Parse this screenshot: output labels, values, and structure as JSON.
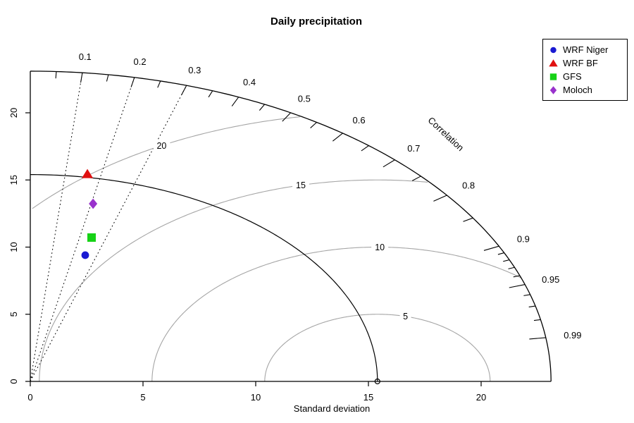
{
  "chart_data": {
    "type": "taylor-diagram",
    "title": "Daily precipitation",
    "xlabel": "Standard deviation",
    "arc_axis_label": "Correlation",
    "axis_range": [
      0,
      23.1
    ],
    "sd_ticks": [
      0,
      5,
      10,
      15,
      20
    ],
    "correlation_labeled_ticks": [
      "0.1",
      "0.2",
      "0.3",
      "0.4",
      "0.5",
      "0.6",
      "0.7",
      "0.8",
      "0.9",
      "0.95",
      "0.99"
    ],
    "correlation_medium_ticks": [
      0.05,
      0.15,
      0.25,
      0.35,
      0.45,
      0.55,
      0.65,
      0.75,
      0.85
    ],
    "correlation_minor_ticks": [
      0.91,
      0.92,
      0.93,
      0.94,
      0.96,
      0.97,
      0.98
    ],
    "correlation_dotted_rays": [
      0.1,
      0.2,
      0.3
    ],
    "reference": {
      "sd": 15.4
    },
    "rms_arcs": {
      "radii": [
        5,
        10,
        15,
        20
      ],
      "labels": [
        "5",
        "10",
        "15",
        "20"
      ],
      "label_angles_deg": [
        75.6,
        89.4,
        103.1,
        118.6
      ],
      "color": "#a5a5a5"
    },
    "series": [
      {
        "name": "WRF Niger",
        "shape": "circle",
        "color": "#1a1ad2",
        "sd": 9.71,
        "correlation": 0.251
      },
      {
        "name": "WRF BF",
        "shape": "triangle",
        "color": "#e01010",
        "sd": 15.64,
        "correlation": 0.162
      },
      {
        "name": "GFS",
        "shape": "square",
        "color": "#16d216",
        "sd": 11.05,
        "correlation": 0.246
      },
      {
        "name": "Moloch",
        "shape": "diamond",
        "color": "#9932cc",
        "sd": 13.52,
        "correlation": 0.206
      }
    ],
    "colors": {
      "axis": "#000000",
      "grid_gray": "#a5a5a5",
      "background": "#ffffff"
    }
  },
  "legend": {
    "items": [
      {
        "label": "WRF Niger"
      },
      {
        "label": "WRF BF"
      },
      {
        "label": "GFS"
      },
      {
        "label": "Moloch"
      }
    ]
  }
}
